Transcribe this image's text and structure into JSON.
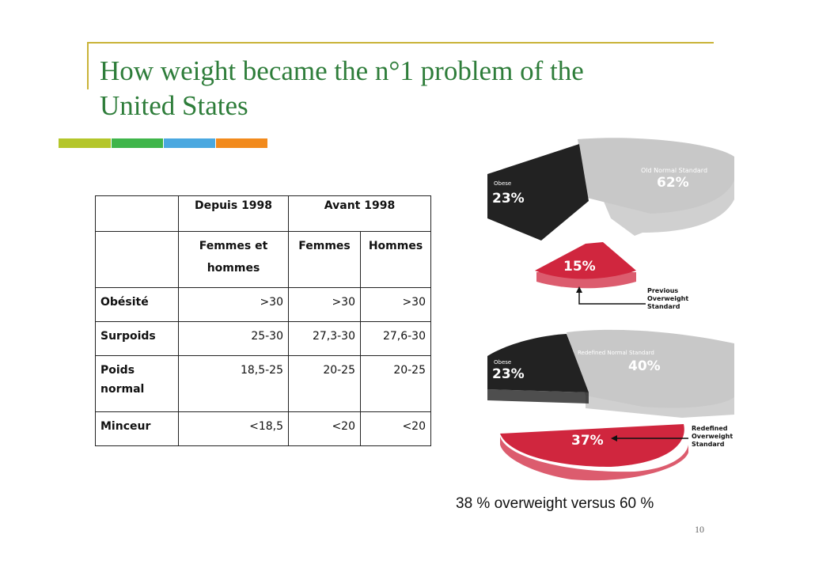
{
  "title": "How weight became the n°1  problem of the United States",
  "accent_bars": [
    "#b4c62a",
    "#3fb54a",
    "#4aa8e0",
    "#f28a1c"
  ],
  "table": {
    "group_headers": [
      "Depuis 1998",
      "Avant 1998"
    ],
    "sub_headers": [
      "Femmes et hommes",
      "Femmes",
      "Hommes"
    ],
    "rows": [
      {
        "label": "Obésité",
        "values": [
          ">30",
          ">30",
          ">30"
        ]
      },
      {
        "label": "Surpoids",
        "values": [
          "25-30",
          "27,3-30",
          "27,6-30"
        ]
      },
      {
        "label": "Poids normal",
        "values": [
          "18,5-25",
          "20-25",
          "20-25"
        ]
      },
      {
        "label": "Minceur",
        "values": [
          "<18,5",
          "<20",
          "<20"
        ]
      }
    ]
  },
  "charts": {
    "top": {
      "normal_label": "Old Normal Standard",
      "normal_pct": "62%",
      "obese_label": "Obese",
      "obese_pct": "23%",
      "overweight_pct": "15%",
      "callout": [
        "Previous",
        "Overweight",
        "Standard"
      ],
      "colors": {
        "normal": "#c8c8c8",
        "obese": "#222222",
        "overweight": "#d0263e"
      }
    },
    "bottom": {
      "normal_label": "Redefined Normal Standard",
      "normal_pct": "40%",
      "obese_label": "Obese",
      "obese_pct": "23%",
      "overweight_pct": "37%",
      "callout": [
        "Redefined",
        "Overweight",
        "Standard"
      ],
      "colors": {
        "normal": "#c8c8c8",
        "obese": "#222222",
        "overweight": "#d0263e"
      }
    }
  },
  "caption": "38 % overweight versus 60 %",
  "page_number": "10"
}
